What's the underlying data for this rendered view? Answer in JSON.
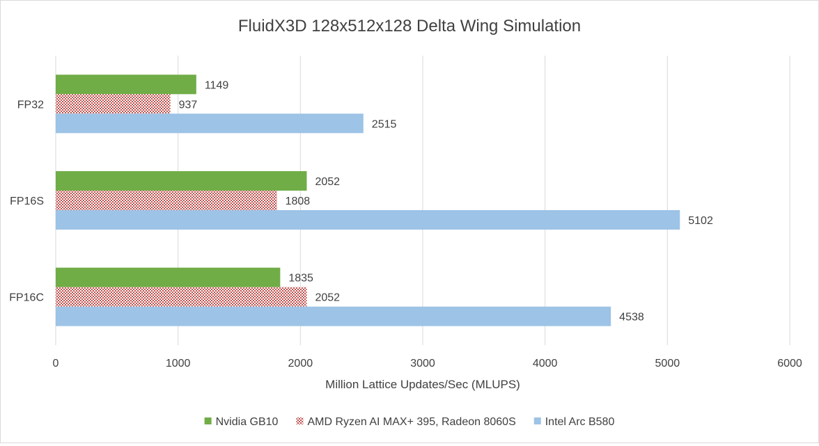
{
  "chart_data": {
    "type": "bar",
    "orientation": "horizontal",
    "title": "FluidX3D 128x512x128 Delta Wing Simulation",
    "xlabel": "Million Lattice Updates/Sec (MLUPS)",
    "ylabel": "",
    "xlim": [
      0,
      6000
    ],
    "x_ticks": [
      "0",
      "1000",
      "2000",
      "3000",
      "4000",
      "5000",
      "6000"
    ],
    "categories": [
      "FP32",
      "FP16S",
      "FP16C"
    ],
    "series": [
      {
        "name": "Nvidia GB10",
        "values": [
          1149,
          2052,
          1835
        ],
        "color": "#70ad47",
        "fill": "solid"
      },
      {
        "name": "AMD Ryzen AI MAX+ 395, Radeon 8060S",
        "values": [
          937,
          1808,
          2052
        ],
        "color": "#c0504d",
        "fill": "checker"
      },
      {
        "name": "Intel Arc B580",
        "values": [
          2515,
          5102,
          4538
        ],
        "color": "#9dc3e6",
        "fill": "solid"
      }
    ],
    "data_labels": true,
    "grid": "vertical-major",
    "legend_position": "bottom"
  }
}
